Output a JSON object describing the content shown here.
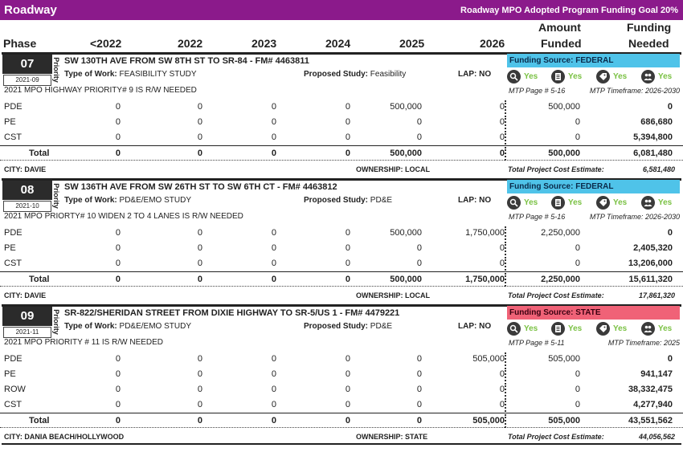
{
  "banner": {
    "title": "Roadway",
    "goal": "Roadway MPO Adopted Program Funding Goal 20%"
  },
  "header": {
    "phase": "Phase",
    "y2022pre": "<2022",
    "y2022": "2022",
    "y2023": "2023",
    "y2024": "2024",
    "y2025": "2025",
    "y2026": "2026",
    "amount1": "Amount",
    "amount2": "Funded",
    "needed1": "Funding",
    "needed2": "Needed"
  },
  "common": {
    "priority": "Priority",
    "type_label": "Type of Work:",
    "study_label": "Proposed Study:",
    "yes": "Yes",
    "total": "Total",
    "city_label": "CITY:",
    "own_label": "OWNERSHIP:",
    "tpce_label": "Total Project Cost Estimate:"
  },
  "projects": [
    {
      "num": "07",
      "date": "2021-09",
      "title": "SW 130TH AVE FROM SW 8TH ST TO SR-84 - FM# 4463811",
      "type_of_work": "FEASIBILITY STUDY",
      "proposed_study": "Feasibility",
      "lap": "LAP: NO",
      "note": "2021 MPO HIGHWAY PRIORITY# 9 IS R/W NEEDED",
      "funding_source": "Funding Source: FEDERAL",
      "source_kind": "federal",
      "mtp_page": "MTP Page # 5-16",
      "mtp_timeframe": "MTP Timeframe: 2026-2030",
      "rows": [
        {
          "phase": "PDE",
          "v": [
            "0",
            "0",
            "0",
            "0",
            "500,000",
            "0"
          ],
          "funded": "500,000",
          "needed": "0"
        },
        {
          "phase": "PE",
          "v": [
            "0",
            "0",
            "0",
            "0",
            "0",
            "0"
          ],
          "funded": "0",
          "needed": "686,680"
        },
        {
          "phase": "CST",
          "v": [
            "0",
            "0",
            "0",
            "0",
            "0",
            "0"
          ],
          "funded": "0",
          "needed": "5,394,800"
        }
      ],
      "total": {
        "v": [
          "0",
          "0",
          "0",
          "0",
          "500,000",
          "0"
        ],
        "funded": "500,000",
        "needed": "6,081,480"
      },
      "city": "CITY: DAVIE",
      "ownership": "OWNERSHIP: LOCAL",
      "tpce": "6,581,480"
    },
    {
      "num": "08",
      "date": "2021-10",
      "title": "SW 136TH AVE FROM SW 26TH ST TO SW 6TH CT - FM# 4463812",
      "type_of_work": "PD&E/EMO STUDY",
      "proposed_study": "PD&E",
      "lap": "LAP: NO",
      "note": "2021 MPO PRIORTY# 10 WIDEN 2 TO 4 LANES IS R/W NEEDED",
      "funding_source": "Funding Source: FEDERAL",
      "source_kind": "federal",
      "mtp_page": "MTP Page # 5-16",
      "mtp_timeframe": "MTP Timeframe: 2026-2030",
      "rows": [
        {
          "phase": "PDE",
          "v": [
            "0",
            "0",
            "0",
            "0",
            "500,000",
            "1,750,000"
          ],
          "funded": "2,250,000",
          "needed": "0"
        },
        {
          "phase": "PE",
          "v": [
            "0",
            "0",
            "0",
            "0",
            "0",
            "0"
          ],
          "funded": "0",
          "needed": "2,405,320"
        },
        {
          "phase": "CST",
          "v": [
            "0",
            "0",
            "0",
            "0",
            "0",
            "0"
          ],
          "funded": "0",
          "needed": "13,206,000"
        }
      ],
      "total": {
        "v": [
          "0",
          "0",
          "0",
          "0",
          "500,000",
          "1,750,000"
        ],
        "funded": "2,250,000",
        "needed": "15,611,320"
      },
      "city": "CITY: DAVIE",
      "ownership": "OWNERSHIP: LOCAL",
      "tpce": "17,861,320"
    },
    {
      "num": "09",
      "date": "2021-11",
      "title": "SR-822/SHERIDAN STREET FROM DIXIE HIGHWAY TO SR-5/US 1 - FM# 4479221",
      "type_of_work": "PD&E/EMO STUDY",
      "proposed_study": "PD&E",
      "lap": "LAP: NO",
      "note": "2021 MPO PRIORITY # 11 IS R/W NEEDED",
      "funding_source": "Funding Source: STATE",
      "source_kind": "state",
      "mtp_page": "MTP Page # 5-11",
      "mtp_timeframe": "MTP Timeframe: 2025",
      "rows": [
        {
          "phase": "PDE",
          "v": [
            "0",
            "0",
            "0",
            "0",
            "0",
            "505,000"
          ],
          "funded": "505,000",
          "needed": "0"
        },
        {
          "phase": "PE",
          "v": [
            "0",
            "0",
            "0",
            "0",
            "0",
            "0"
          ],
          "funded": "0",
          "needed": "941,147"
        },
        {
          "phase": "ROW",
          "v": [
            "0",
            "0",
            "0",
            "0",
            "0",
            "0"
          ],
          "funded": "0",
          "needed": "38,332,475"
        },
        {
          "phase": "CST",
          "v": [
            "0",
            "0",
            "0",
            "0",
            "0",
            "0"
          ],
          "funded": "0",
          "needed": "4,277,940"
        }
      ],
      "total": {
        "v": [
          "0",
          "0",
          "0",
          "0",
          "0",
          "505,000"
        ],
        "funded": "505,000",
        "needed": "43,551,562"
      },
      "city": "CITY: DANIA BEACH/HOLLYWOOD",
      "ownership": "OWNERSHIP: STATE",
      "tpce": "44,056,562"
    }
  ],
  "icons": [
    "search-icon",
    "document-icon",
    "tag-icon",
    "people-icon"
  ],
  "colors": {
    "banner": "#8b1a8b",
    "federal": "#4fc3e9",
    "state": "#f06277",
    "yes": "#7ac143"
  }
}
